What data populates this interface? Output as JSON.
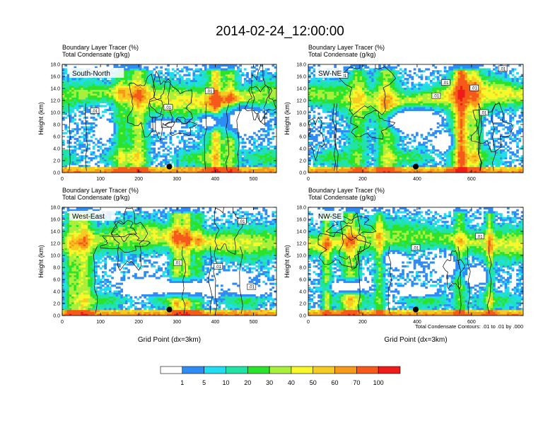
{
  "figure": {
    "title": "2014-02-24_12:00:00",
    "contour_note": "Total Condensate Contours: .01 to .01 by .000",
    "shade_note": "Boundary Layer Tracer (%)"
  },
  "colorbar": {
    "colors": [
      "#ffffff",
      "#2f8cf5",
      "#22ddf0",
      "#22e3a6",
      "#2ae32a",
      "#a9ef3c",
      "#f7f72a",
      "#f7cc22",
      "#f79a1a",
      "#f55a1a",
      "#ef1a1a"
    ],
    "labels": [
      "1",
      "5",
      "10",
      "20",
      "30",
      "40",
      "50",
      "60",
      "70",
      "100"
    ]
  },
  "chart_data": [
    {
      "type": "heatmap",
      "panel_label": "South-North",
      "title_line1": "Boundary Layer Tracer   (%)",
      "title_line2": "Total Condensate   (g/kg)",
      "xlabel": "",
      "ylabel": "Height (km)",
      "xlim": [
        0,
        560
      ],
      "ylim": [
        0,
        18
      ],
      "xticks": [
        0,
        100,
        200,
        300,
        400,
        500
      ],
      "yticks": [
        "0.0",
        "2.0",
        "4.0",
        "6.0",
        "8.0",
        "10.0",
        "12.0",
        "14.0",
        "16.0",
        "18.0"
      ],
      "marker": {
        "x": 280,
        "y": 1.0
      },
      "contour_labels": [
        {
          "text": ".01",
          "x": 85,
          "y": 10.3
        },
        {
          "text": ".01",
          "x": 277,
          "y": 10.9
        },
        {
          "text": ".01",
          "x": 385,
          "y": 13.6
        }
      ],
      "seed": 11
    },
    {
      "type": "heatmap",
      "panel_label": "SW-NE",
      "title_line1": "Boundary Layer Tracer   (%)",
      "title_line2": "Total Condensate   (g/kg)",
      "xlabel": "",
      "ylabel": "Height (km)",
      "xlim": [
        0,
        790
      ],
      "ylim": [
        0,
        18
      ],
      "xticks": [
        0,
        200,
        400,
        600
      ],
      "yticks": [
        "0.0",
        "2.0",
        "4.0",
        "6.0",
        "8.0",
        "10.0",
        "12.0",
        "14.0",
        "16.0",
        "18.0"
      ],
      "marker": {
        "x": 395,
        "y": 1.0
      },
      "contour_labels": [
        {
          "text": ".01",
          "x": 130,
          "y": 16.2
        },
        {
          "text": ".01",
          "x": 470,
          "y": 12.8
        },
        {
          "text": ".01",
          "x": 505,
          "y": 15.0
        },
        {
          "text": ".01",
          "x": 610,
          "y": 14.1
        },
        {
          "text": ".01",
          "x": 645,
          "y": 10.0
        },
        {
          "text": ".01",
          "x": 715,
          "y": 17.3
        }
      ],
      "seed": 23
    },
    {
      "type": "heatmap",
      "panel_label": "West-East",
      "title_line1": "Boundary Layer Tracer   (%)",
      "title_line2": "Total Condensate   (g/kg)",
      "xlabel": "Grid Point (dx=3km)",
      "ylabel": "Height (km)",
      "xlim": [
        0,
        560
      ],
      "ylim": [
        0,
        18
      ],
      "xticks": [
        0,
        100,
        200,
        300,
        400,
        500
      ],
      "yticks": [
        "0.0",
        "2.0",
        "4.0",
        "6.0",
        "8.0",
        "10.0",
        "12.0",
        "14.0",
        "16.0",
        "18.0"
      ],
      "marker": {
        "x": 280,
        "y": 1.0
      },
      "contour_labels": [
        {
          "text": ".01",
          "x": 302,
          "y": 8.8
        },
        {
          "text": ".01",
          "x": 408,
          "y": 8.2
        },
        {
          "text": ".01",
          "x": 495,
          "y": 4.8
        },
        {
          "text": ".01",
          "x": 470,
          "y": 15.7
        }
      ],
      "seed": 37
    },
    {
      "type": "heatmap",
      "panel_label": "NW-SE",
      "title_line1": "Boundary Layer Tracer   (%)",
      "title_line2": "Total Condensate   (g/kg)",
      "xlabel": "Grid Point (dx=3km)",
      "ylabel": "Height (km)",
      "xlim": [
        0,
        790
      ],
      "ylim": [
        0,
        18
      ],
      "xticks": [
        0,
        200,
        400,
        600
      ],
      "yticks": [
        "0.0",
        "2.0",
        "4.0",
        "6.0",
        "8.0",
        "10.0",
        "12.0",
        "14.0",
        "16.0",
        "18.0"
      ],
      "marker": {
        "x": 395,
        "y": 1.0
      },
      "contour_labels": [
        {
          "text": ".01",
          "x": 395,
          "y": 11.3
        },
        {
          "text": ".01",
          "x": 630,
          "y": 13.2
        }
      ],
      "seed": 53
    }
  ]
}
